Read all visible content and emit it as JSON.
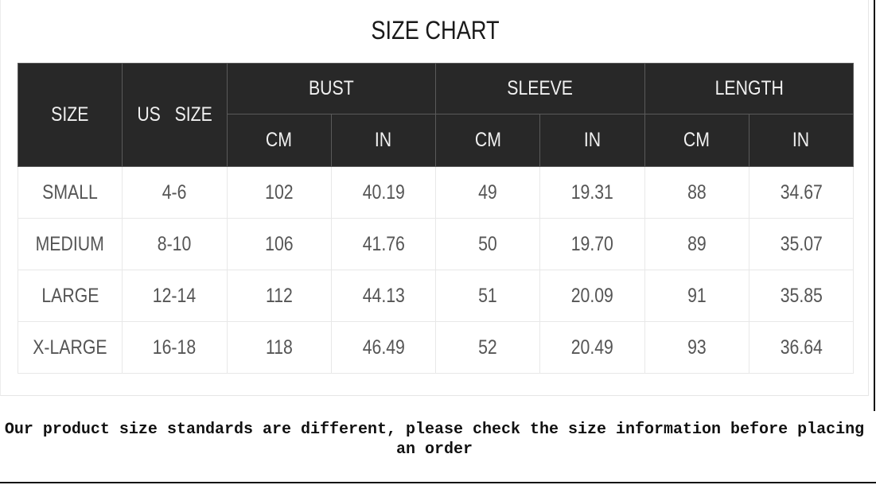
{
  "title": "SIZE CHART",
  "headers": {
    "size": "SIZE",
    "us_size": "US   SIZE",
    "groups": [
      "BUST",
      "SLEEVE",
      "LENGTH"
    ],
    "units": [
      "CM",
      "IN",
      "CM",
      "IN",
      "CM",
      "IN"
    ]
  },
  "rows": [
    [
      "SMALL",
      "4-6",
      "102",
      "40.19",
      "49",
      "19.31",
      "88",
      "34.67"
    ],
    [
      "MEDIUM",
      "8-10",
      "106",
      "41.76",
      "50",
      "19.70",
      "89",
      "35.07"
    ],
    [
      "LARGE",
      "12-14",
      "112",
      "44.13",
      "51",
      "20.09",
      "91",
      "35.85"
    ],
    [
      "X-LARGE",
      "16-18",
      "118",
      "46.49",
      "52",
      "20.49",
      "93",
      "36.64"
    ]
  ],
  "note": "Our product size standards are different, please check the size information before placing an order"
}
